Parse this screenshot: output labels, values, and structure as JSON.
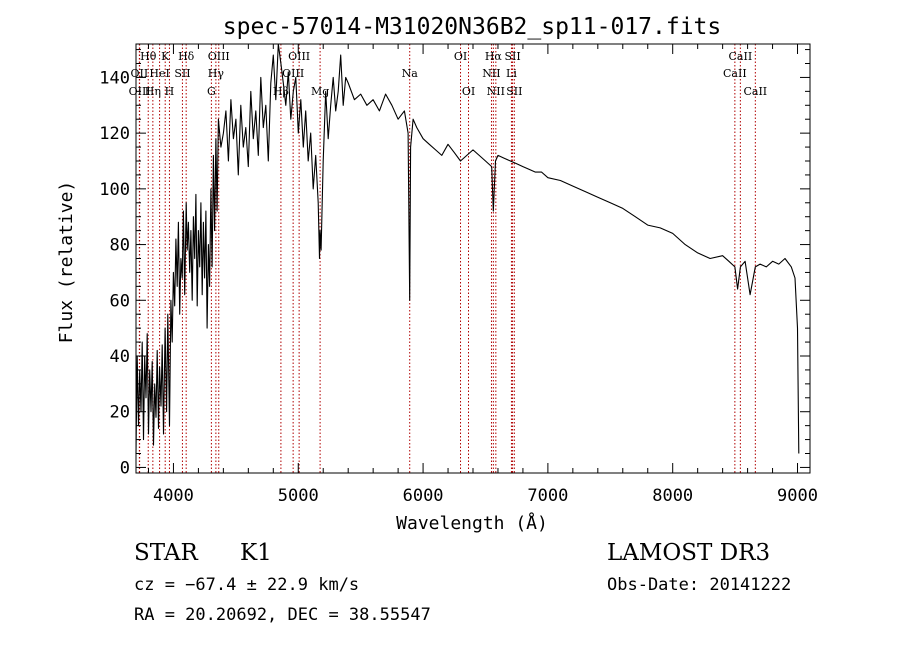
{
  "chart_data": {
    "type": "line",
    "title": "spec-57014-M31020N36B2_sp11-017.fits",
    "xlabel": "Wavelength (Å)",
    "ylabel": "Flux (relative)",
    "xlim": [
      3700,
      9100
    ],
    "ylim": [
      -2,
      152
    ],
    "x_ticks": [
      4000,
      5000,
      6000,
      7000,
      8000,
      9000
    ],
    "y_ticks": [
      0,
      20,
      40,
      60,
      80,
      100,
      120,
      140
    ],
    "grid": false,
    "series": [
      {
        "color": "#000000",
        "x": [
          3700,
          3710,
          3720,
          3730,
          3740,
          3750,
          3760,
          3770,
          3780,
          3790,
          3800,
          3810,
          3820,
          3830,
          3840,
          3850,
          3860,
          3870,
          3880,
          3889,
          3900,
          3910,
          3920,
          3933,
          3945,
          3955,
          3968,
          3980,
          3990,
          4000,
          4010,
          4020,
          4030,
          4040,
          4050,
          4060,
          4070,
          4080,
          4090,
          4102,
          4110,
          4120,
          4130,
          4140,
          4150,
          4160,
          4170,
          4180,
          4190,
          4200,
          4210,
          4220,
          4230,
          4240,
          4250,
          4260,
          4270,
          4280,
          4290,
          4300,
          4310,
          4320,
          4330,
          4340,
          4350,
          4360,
          4380,
          4400,
          4420,
          4440,
          4460,
          4480,
          4500,
          4520,
          4540,
          4560,
          4580,
          4600,
          4620,
          4640,
          4660,
          4680,
          4700,
          4720,
          4740,
          4760,
          4780,
          4800,
          4820,
          4840,
          4861,
          4880,
          4900,
          4920,
          4940,
          4960,
          4980,
          5000,
          5020,
          5040,
          5060,
          5080,
          5100,
          5120,
          5140,
          5160,
          5170,
          5175,
          5183,
          5190,
          5200,
          5220,
          5240,
          5260,
          5280,
          5300,
          5320,
          5340,
          5360,
          5380,
          5400,
          5450,
          5500,
          5550,
          5600,
          5650,
          5700,
          5750,
          5800,
          5850,
          5880,
          5893,
          5900,
          5920,
          5950,
          6000,
          6050,
          6100,
          6150,
          6200,
          6250,
          6300,
          6350,
          6400,
          6450,
          6500,
          6550,
          6563,
          6580,
          6600,
          6650,
          6700,
          6750,
          6800,
          6850,
          6900,
          6950,
          7000,
          7100,
          7200,
          7300,
          7400,
          7500,
          7600,
          7700,
          7800,
          7900,
          8000,
          8100,
          8200,
          8300,
          8400,
          8450,
          8498,
          8520,
          8542,
          8580,
          8620,
          8662,
          8700,
          8750,
          8800,
          8850,
          8900,
          8950,
          8980,
          9000,
          9010
        ],
        "y": [
          5,
          40,
          15,
          35,
          20,
          45,
          10,
          40,
          25,
          48,
          12,
          35,
          20,
          38,
          8,
          30,
          18,
          42,
          14,
          36,
          22,
          44,
          12,
          50,
          20,
          55,
          15,
          60,
          45,
          70,
          58,
          82,
          65,
          88,
          55,
          75,
          68,
          92,
          62,
          95,
          78,
          88,
          70,
          85,
          60,
          90,
          75,
          98,
          58,
          85,
          72,
          95,
          62,
          88,
          68,
          92,
          50,
          80,
          65,
          100,
          72,
          112,
          85,
          118,
          92,
          125,
          115,
          120,
          128,
          110,
          132,
          118,
          125,
          105,
          130,
          115,
          122,
          108,
          135,
          118,
          128,
          112,
          140,
          122,
          130,
          110,
          138,
          148,
          132,
          152,
          145,
          138,
          130,
          142,
          125,
          135,
          140,
          120,
          132,
          115,
          128,
          110,
          120,
          100,
          112,
          95,
          75,
          85,
          78,
          92,
          110,
          135,
          118,
          130,
          140,
          128,
          135,
          148,
          130,
          140,
          138,
          132,
          134,
          130,
          132,
          128,
          134,
          130,
          125,
          128,
          120,
          60,
          115,
          125,
          122,
          118,
          116,
          114,
          112,
          116,
          113,
          110,
          112,
          114,
          112,
          110,
          108,
          92,
          110,
          112,
          111,
          110,
          109,
          108,
          107,
          106,
          106,
          104,
          103,
          101,
          99,
          97,
          95,
          93,
          90,
          87,
          86,
          84,
          80,
          77,
          75,
          76,
          74,
          72,
          64,
          72,
          74,
          62,
          72,
          73,
          72,
          74,
          73,
          75,
          72,
          68,
          50,
          5
        ]
      }
    ],
    "lines": [
      {
        "label": "Hθ",
        "x": 3798,
        "row": 0
      },
      {
        "label": "K",
        "x": 3934,
        "row": 0
      },
      {
        "label": "Hδ",
        "x": 4102,
        "row": 0
      },
      {
        "label": "OIII",
        "x": 4363,
        "row": 0
      },
      {
        "label": "OIII",
        "x": 5007,
        "row": 0
      },
      {
        "label": "OI",
        "x": 6300,
        "row": 0
      },
      {
        "label": "Hα",
        "x": 6563,
        "row": 0
      },
      {
        "label": "SII",
        "x": 6717,
        "row": 0
      },
      {
        "label": "CaII",
        "x": 8542,
        "row": 0
      },
      {
        "label": "OII",
        "x": 3727,
        "row": 1
      },
      {
        "label": "HeI",
        "x": 3889,
        "row": 1
      },
      {
        "label": "SII",
        "x": 4072,
        "row": 1
      },
      {
        "label": "Hγ",
        "x": 4340,
        "row": 1
      },
      {
        "label": "OIII",
        "x": 4959,
        "row": 1
      },
      {
        "label": "Na",
        "x": 5893,
        "row": 1
      },
      {
        "label": "NII",
        "x": 6548,
        "row": 1
      },
      {
        "label": "Li",
        "x": 6708,
        "row": 1
      },
      {
        "label": "CaII",
        "x": 8498,
        "row": 1
      },
      {
        "label": "OIII",
        "x": 3729,
        "row": 2
      },
      {
        "label": "Hη",
        "x": 3835,
        "row": 2
      },
      {
        "label": "H",
        "x": 3968,
        "row": 2
      },
      {
        "label": "G",
        "x": 4304,
        "row": 2
      },
      {
        "label": "Hβ",
        "x": 4861,
        "row": 2
      },
      {
        "label": "Mg",
        "x": 5175,
        "row": 2
      },
      {
        "label": "OI",
        "x": 6364,
        "row": 2
      },
      {
        "label": "NII",
        "x": 6583,
        "row": 2
      },
      {
        "label": "SII",
        "x": 6731,
        "row": 2
      },
      {
        "label": "CaII",
        "x": 8662,
        "row": 2
      }
    ]
  },
  "info": {
    "class": "STAR",
    "subclass": "K1",
    "survey": "LAMOST DR3",
    "cz": "cz = −67.4 ± 22.9 km/s",
    "obs_date": "Obs-Date: 20141222",
    "coords": "RA =  20.20692, DEC =  38.55547"
  }
}
